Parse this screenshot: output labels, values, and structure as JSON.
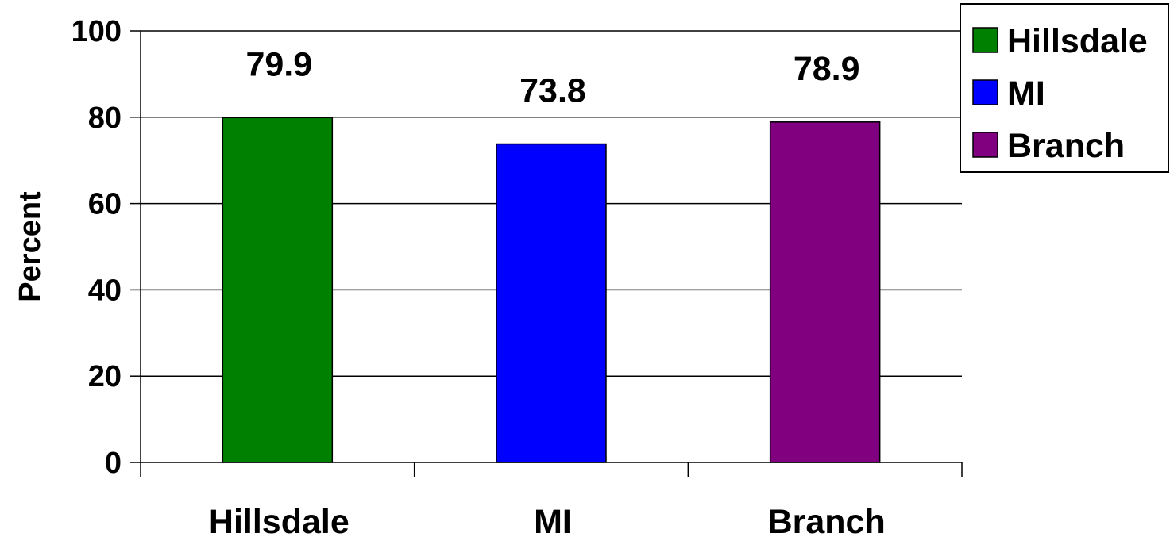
{
  "chart_data": {
    "type": "bar",
    "categories": [
      "Hillsdale",
      "MI",
      "Branch"
    ],
    "values": [
      79.9,
      73.8,
      78.9
    ],
    "data_labels": [
      "79.9",
      "73.8",
      "78.9"
    ],
    "colors": [
      "#008000",
      "#0000FF",
      "#800080"
    ],
    "title": "",
    "xlabel": "",
    "ylabel": "Percent",
    "ylim": [
      0,
      100
    ],
    "yticks": [
      0,
      20,
      40,
      60,
      80,
      100
    ],
    "ytick_labels": [
      "0",
      "20",
      "40",
      "60",
      "80",
      "100"
    ],
    "grid": true,
    "legend": {
      "placement": "top-right",
      "entries": [
        "Hillsdale",
        "MI",
        "Branch"
      ]
    }
  }
}
